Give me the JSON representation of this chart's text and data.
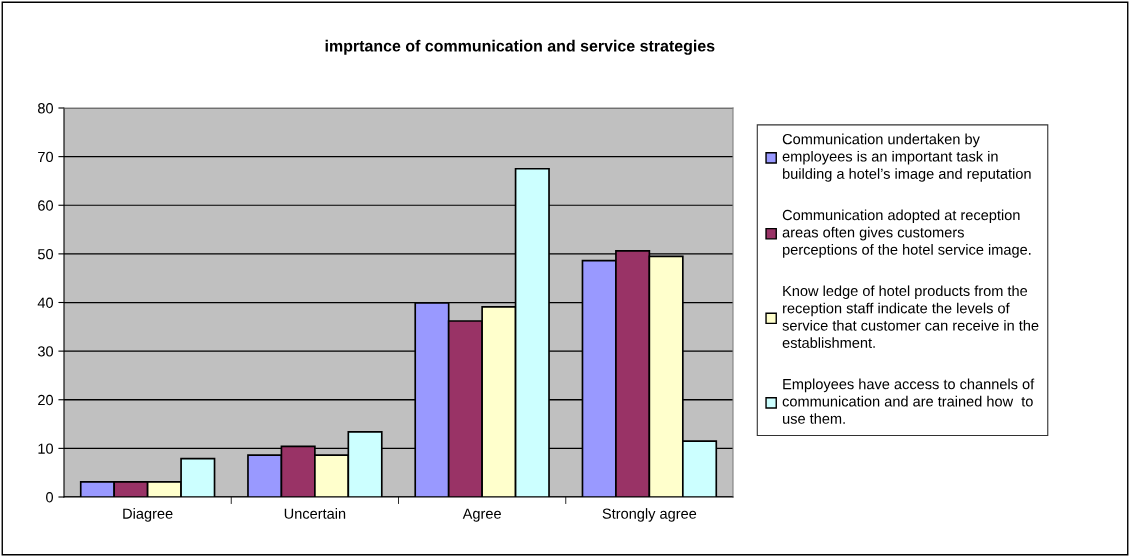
{
  "chart_data": {
    "type": "bar",
    "title": "imprtance of communication and service strategies",
    "categories": [
      "Diagree",
      "Uncertain",
      "Agree",
      "Strongly agree"
    ],
    "series": [
      {
        "name": "Communication undertaken by\nemployees is an important task in\nbuilding a hotel’s image and reputation",
        "color": "#9999ff",
        "values": [
          3.1,
          8.6,
          39.9,
          48.6
        ]
      },
      {
        "name": "Communication adopted at reception\nareas often gives customers\nperceptions of the hotel service image.",
        "color": "#993366",
        "values": [
          3.1,
          10.4,
          36.2,
          50.6
        ]
      },
      {
        "name": "Know ledge of hotel products from the\nreception staff indicate the levels of\nservice that customer can receive in the\nestablishment.",
        "color": "#ffffcc",
        "values": [
          3.1,
          8.6,
          39.1,
          49.5
        ]
      },
      {
        "name": "Employees have access to channels of\ncommunication and are trained how  to\nuse them.",
        "color": "#ccffff",
        "values": [
          7.9,
          13.4,
          67.5,
          11.5
        ]
      }
    ],
    "ylim": [
      0,
      80
    ],
    "yticks": [
      0,
      10,
      20,
      30,
      40,
      50,
      60,
      70,
      80
    ],
    "grid": "y",
    "legend": "right"
  }
}
